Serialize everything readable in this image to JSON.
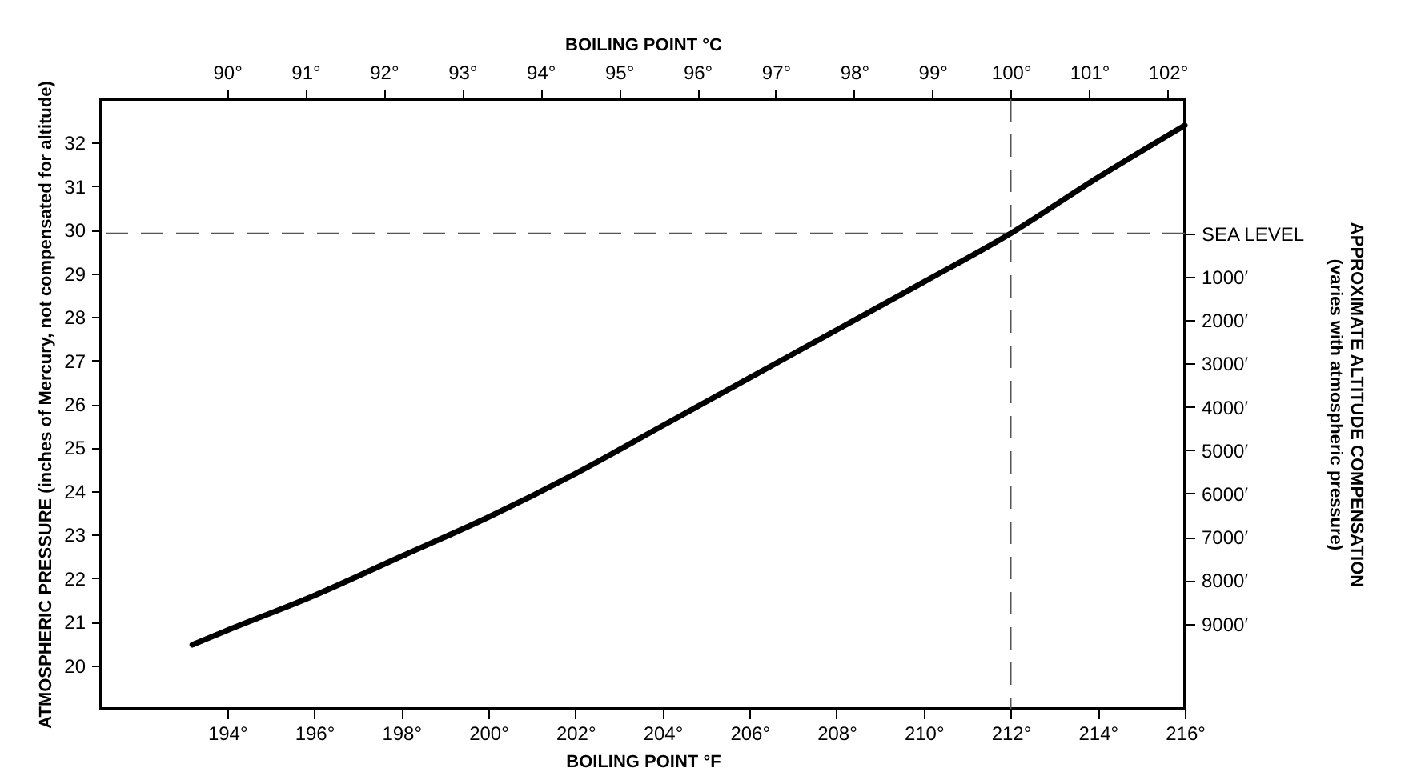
{
  "chart_data": {
    "type": "line",
    "xlabel": "BOILING POINT °F",
    "x2label": "BOILING POINT °C",
    "ylabel": "ATMOSPHERIC PRESSURE (inches of Mercury, not compensated for altitude)",
    "y2label": "APPROXIMATE ALTITUDE COMPENSATION\n(varies with atmospheric pressure)",
    "x": [
      193.2,
      194,
      196,
      198,
      200,
      202,
      204,
      206,
      208,
      210,
      212,
      214,
      216
    ],
    "series": [
      {
        "color": "#000000",
        "values": [
          20.47,
          20.8,
          21.6,
          22.5,
          23.4,
          24.4,
          25.5,
          26.6,
          27.7,
          28.8,
          29.92,
          31.2,
          32.4
        ]
      }
    ],
    "xlim": [
      191.1,
      216
    ],
    "xticks": [
      {
        "value": 194,
        "label": "194°"
      },
      {
        "value": 196,
        "label": "196°"
      },
      {
        "value": 198,
        "label": "198°"
      },
      {
        "value": 200,
        "label": "200°"
      },
      {
        "value": 202,
        "label": "202°"
      },
      {
        "value": 204,
        "label": "204°"
      },
      {
        "value": 206,
        "label": "206°"
      },
      {
        "value": 208,
        "label": "208°"
      },
      {
        "value": 210,
        "label": "210°"
      },
      {
        "value": 212,
        "label": "212°"
      },
      {
        "value": 214,
        "label": "214°"
      },
      {
        "value": 216,
        "label": "216°"
      }
    ],
    "x2lim": [
      88.39,
      102.22
    ],
    "x2ticks": [
      {
        "value": 90,
        "label": "90°"
      },
      {
        "value": 91,
        "label": "91°"
      },
      {
        "value": 92,
        "label": "92°"
      },
      {
        "value": 93,
        "label": "93°"
      },
      {
        "value": 94,
        "label": "94°"
      },
      {
        "value": 95,
        "label": "95°"
      },
      {
        "value": 96,
        "label": "96°"
      },
      {
        "value": 97,
        "label": "97°"
      },
      {
        "value": 98,
        "label": "98°"
      },
      {
        "value": 99,
        "label": "99°"
      },
      {
        "value": 100,
        "label": "100°"
      },
      {
        "value": 101,
        "label": "101°"
      },
      {
        "value": 102,
        "label": "102°"
      }
    ],
    "ylim": [
      19,
      33
    ],
    "yticks": [
      20,
      21,
      22,
      23,
      24,
      25,
      26,
      27,
      28,
      29,
      30,
      31,
      32
    ],
    "y2lim": [
      10960,
      -3090
    ],
    "y2ticks": [
      {
        "value": 0,
        "label": "SEA LEVEL"
      },
      {
        "value": 1000,
        "label": "1000′"
      },
      {
        "value": 2000,
        "label": "2000′"
      },
      {
        "value": 3000,
        "label": "3000′"
      },
      {
        "value": 4000,
        "label": "4000′"
      },
      {
        "value": 5000,
        "label": "5000′"
      },
      {
        "value": 6000,
        "label": "6000′"
      },
      {
        "value": 7000,
        "label": "7000′"
      },
      {
        "value": 8000,
        "label": "8000′"
      },
      {
        "value": 9000,
        "label": "9000′"
      }
    ],
    "ref_lines": [
      {
        "axis": "y",
        "value": 29.92,
        "line_style": "dashed",
        "color": "#555555"
      },
      {
        "axis": "x",
        "value": 212,
        "line_style": "dashed",
        "color": "#555555"
      }
    ],
    "grid": false,
    "line_style": "solid",
    "marker": "none"
  }
}
